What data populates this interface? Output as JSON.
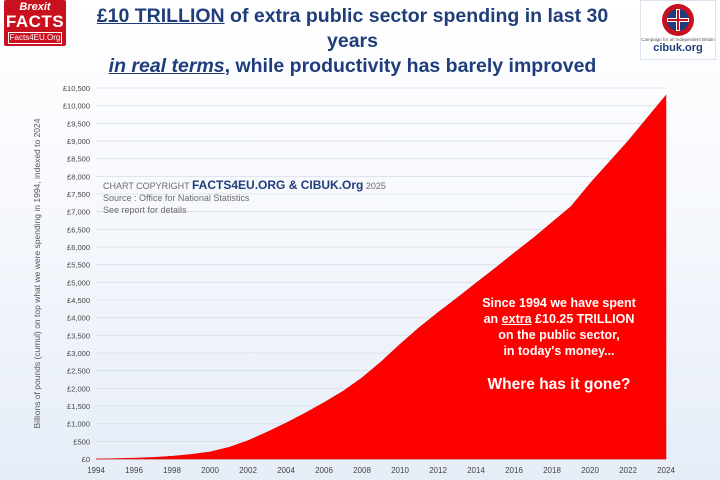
{
  "logo_left": {
    "line1": "Brexit",
    "line2": "FACTS",
    "line3": "Facts4EU.Org"
  },
  "title": {
    "line1_highlight": "£10 TRILLION",
    "line1_rest": " of extra public sector spending in last 30 years",
    "line2_highlight": "in real terms",
    "line2_rest": ", while productivity has barely improved"
  },
  "logo_right": {
    "mark": "CIB",
    "tagline": "Campaign for an Independent Britain",
    "site": "cibuk.org"
  },
  "copyright": {
    "prefix": "CHART COPYRIGHT ",
    "brand": "FACTS4EU.ORG & CIBUK.Org",
    "year": " 2025",
    "source": "Source : Office for National Statistics",
    "details": "See report for details"
  },
  "annotation": {
    "line1": "Since 1994 we have spent",
    "line2_pre": "an ",
    "line2_ul": "extra",
    "line2_post": " £10.25 TRILLION",
    "line3": "on the public sector,",
    "line4": "in today's money...",
    "question": "Where has it gone?"
  },
  "colors": {
    "area": "#ff0000",
    "title": "#1f3d7a",
    "brand_red": "#c8101e"
  },
  "chart_data": {
    "type": "area",
    "ylabel": "Billions of pounds (cumul) on top what we were spending in 1994, indexed to 2024",
    "xlabel": "",
    "x": [
      1994,
      1995,
      1996,
      1997,
      1998,
      1999,
      2000,
      2001,
      2002,
      2003,
      2004,
      2005,
      2006,
      2007,
      2008,
      2009,
      2010,
      2011,
      2012,
      2013,
      2014,
      2015,
      2016,
      2017,
      2018,
      2019,
      2020,
      2021,
      2022,
      2023,
      2024
    ],
    "series": [
      {
        "values": [
          0,
          10,
          25,
          45,
          80,
          130,
          200,
          330,
          520,
          760,
          1020,
          1300,
          1600,
          1920,
          2300,
          2750,
          3250,
          3720,
          4150,
          4560,
          4980,
          5400,
          5830,
          6250,
          6700,
          7150,
          7800,
          8400,
          9000,
          9650,
          10300
        ]
      }
    ],
    "xticks": [
      "1994",
      "1996",
      "1998",
      "2000",
      "2002",
      "2004",
      "2006",
      "2008",
      "2010",
      "2012",
      "2014",
      "2016",
      "2018",
      "2020",
      "2022",
      "2024"
    ],
    "yticks": [
      "£0",
      "£500",
      "£1,000",
      "£1,500",
      "£2,000",
      "£2,500",
      "£3,000",
      "£3,500",
      "£4,000",
      "£4,500",
      "£5,000",
      "£5,500",
      "£6,000",
      "£6,500",
      "£7,000",
      "£7,500",
      "£8,000",
      "£8,500",
      "£9,000",
      "£9,500",
      "£10,000",
      "£10,500"
    ],
    "xlim": [
      1994,
      2024
    ],
    "ylim": [
      0,
      10500
    ],
    "grid": true
  }
}
